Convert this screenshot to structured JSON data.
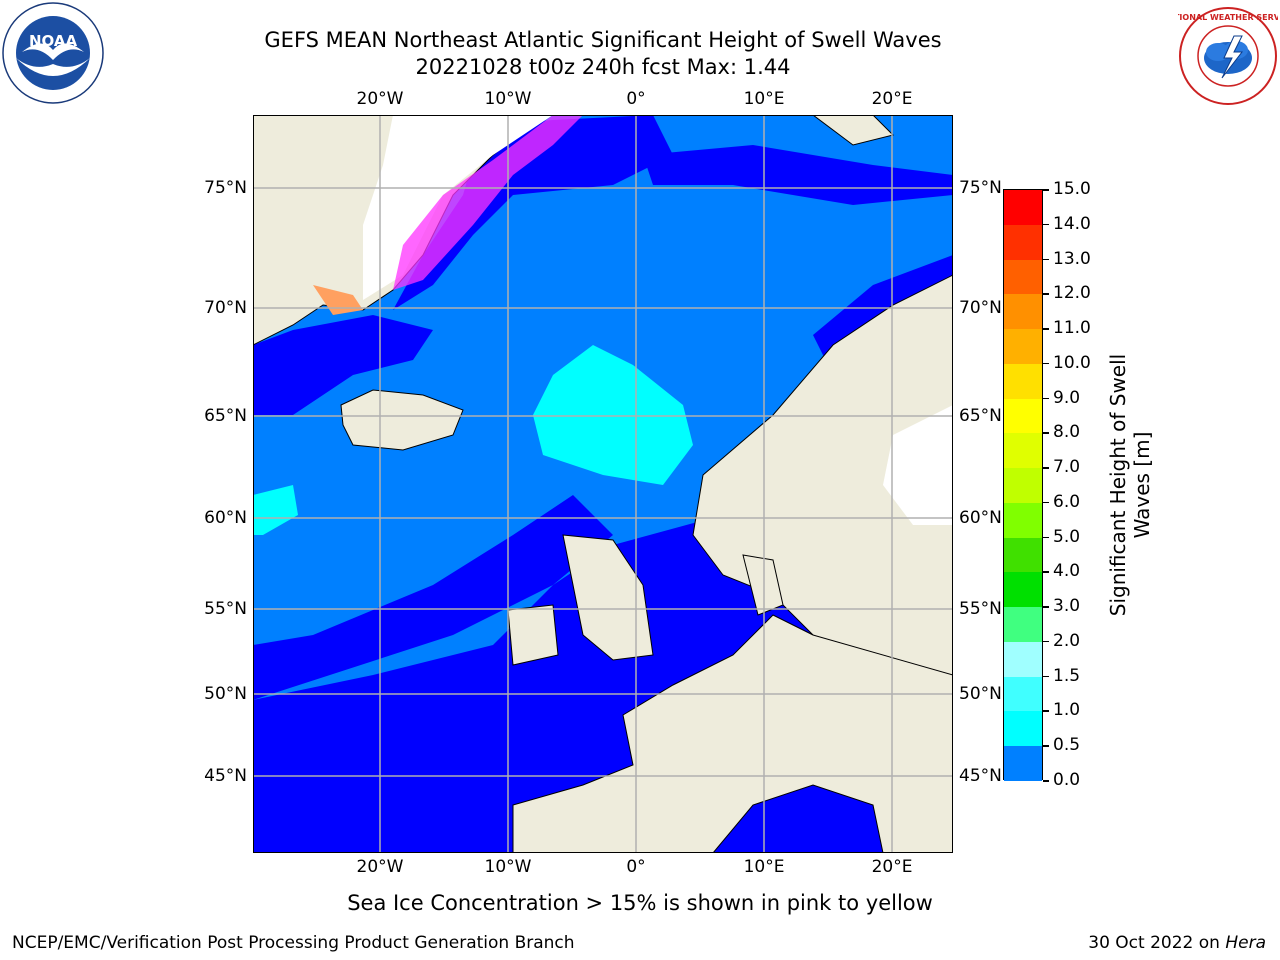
{
  "header": {
    "title_line1": "GEFS MEAN Northeast Atlantic Significant Height of Swell Waves",
    "title_line2": "20221028 t00z 240h fcst   Max: 1.44"
  },
  "logos": {
    "left": "NOAA",
    "right_lettering": "NATIONAL WEATHER SERVICE"
  },
  "map": {
    "lon_ticks": [
      "20°W",
      "10°W",
      "0°",
      "10°E",
      "20°E"
    ],
    "lat_ticks": [
      "75°N",
      "70°N",
      "65°N",
      "60°N",
      "55°N",
      "50°N",
      "45°N"
    ],
    "colors": {
      "land": "#eeecdc",
      "sea_ice_free_white": "#ffffff",
      "swell_0_05": "#0000ff",
      "swell_05_10": "#0080ff",
      "swell_10_15": "#00ffff",
      "swell_15_20": "#40ffff",
      "ice_pink": "#ff33ff",
      "ice_orange": "#ffa060",
      "grid": "#b0b0b0"
    }
  },
  "colorbar": {
    "title": "Significant Height of Swell Waves [m]",
    "labels": [
      "15.0",
      "14.0",
      "13.0",
      "12.0",
      "11.0",
      "10.0",
      "9.0",
      "8.0",
      "7.0",
      "6.0",
      "5.0",
      "4.0",
      "3.0",
      "2.0",
      "1.5",
      "1.0",
      "0.5",
      "0.0"
    ],
    "colors": [
      "#ff0000",
      "#ff3000",
      "#ff6000",
      "#ff9000",
      "#ffb000",
      "#ffe000",
      "#ffff00",
      "#e0ff00",
      "#c0ff00",
      "#80ff00",
      "#40e000",
      "#00e000",
      "#40ff80",
      "#a0ffff",
      "#40ffff",
      "#00ffff",
      "#0080ff",
      "#0000ff"
    ]
  },
  "notes": {
    "sea_ice": "Sea Ice Concentration > 15% is shown in pink to yellow",
    "footer_left": "NCEP/EMC/Verification Post Processing Product Generation Branch",
    "footer_right_prefix": "30 Oct 2022 on ",
    "footer_right_host": "Hera"
  }
}
